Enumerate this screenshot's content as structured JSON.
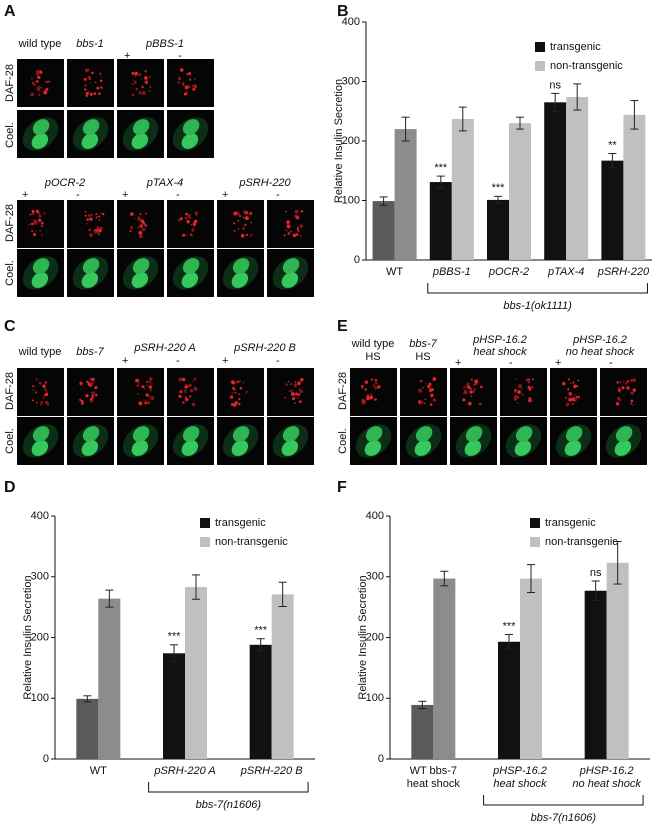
{
  "image_panels": {
    "A": {
      "panel_label": "A",
      "blocks": [
        {
          "headers": [
            "wild type",
            "bbs-1",
            "pBBS-1"
          ],
          "signs": [
            "+",
            "-"
          ],
          "rows": [
            "DAF-28",
            "Coel."
          ]
        },
        {
          "headers": [
            "pOCR-2",
            "pTAX-4",
            "pSRH-220"
          ],
          "signs": [
            "+",
            "-",
            "+",
            "-",
            "+",
            "-"
          ],
          "rows": [
            "DAF-28",
            "Coel."
          ]
        }
      ]
    },
    "C": {
      "panel_label": "C",
      "headers": [
        "wild type",
        "bbs-7",
        "pSRH-220 A",
        "pSRH-220 B"
      ],
      "signs": [
        "+",
        "-",
        "+",
        "-"
      ],
      "rows": [
        "DAF-28",
        "Coel."
      ]
    },
    "E": {
      "panel_label": "E",
      "headers": [
        "wild type",
        "bbs-7",
        "pHSP-16.2",
        "heat shock",
        "pHSP-16.2",
        "no heat shock"
      ],
      "sub_headers": [
        "HS",
        "HS"
      ],
      "signs": [
        "+",
        "-",
        "+",
        "-"
      ],
      "rows": [
        "DAF-28",
        "Coel."
      ]
    }
  },
  "chart_data": [
    {
      "type": "bar",
      "panel_label": "B",
      "ylabel": "Relative Insulin Secretion",
      "categories": [
        [
          "WT"
        ],
        [
          "pBBS-1"
        ],
        [
          "pOCR-2"
        ],
        [
          "pTAX-4"
        ],
        [
          "pSRH-220"
        ]
      ],
      "series": [
        {
          "name": "transgenic",
          "color": "#111111",
          "colors": [
            "#5a5a5a",
            "#111111",
            "#111111",
            "#111111",
            "#111111"
          ],
          "values": [
            99,
            131,
            101,
            265,
            167
          ],
          "errors": [
            7,
            10,
            6,
            15,
            12
          ]
        },
        {
          "name": "non-transgenic",
          "color": "#c0c0c0",
          "colors": [
            "#8c8c8c",
            "#c0c0c0",
            "#c0c0c0",
            "#c0c0c0",
            "#c0c0c0"
          ],
          "values": [
            220,
            237,
            230,
            274,
            244
          ],
          "errors": [
            20,
            20,
            10,
            22,
            24
          ]
        }
      ],
      "significance": [
        null,
        "***",
        "***",
        "ns",
        "**"
      ],
      "group_label": "bbs-1(ok1111)",
      "ylim": [
        0,
        400
      ],
      "yticks": [
        0,
        100,
        200,
        300,
        400
      ],
      "legend": "upper right"
    },
    {
      "type": "bar",
      "panel_label": "D",
      "ylabel": "Relative Insulin Secretion",
      "categories": [
        [
          "WT"
        ],
        [
          "pSRH-220 A"
        ],
        [
          "pSRH-220 B"
        ]
      ],
      "series": [
        {
          "name": "transgenic",
          "color": "#111111",
          "colors": [
            "#5a5a5a",
            "#111111",
            "#111111"
          ],
          "values": [
            99,
            174,
            188
          ],
          "errors": [
            5,
            14,
            10
          ]
        },
        {
          "name": "non-transgenic",
          "color": "#c0c0c0",
          "colors": [
            "#8c8c8c",
            "#c0c0c0",
            "#c0c0c0"
          ],
          "values": [
            264,
            283,
            271
          ],
          "errors": [
            14,
            20,
            20
          ]
        }
      ],
      "significance": [
        null,
        "***",
        "***"
      ],
      "group_label": "bbs-7(n1606)",
      "ylim": [
        0,
        400
      ],
      "yticks": [
        0,
        100,
        200,
        300,
        400
      ],
      "legend": "upper right"
    },
    {
      "type": "bar",
      "panel_label": "F",
      "ylabel": "Relative Insulin Secretion",
      "categories": [
        [
          "WT bbs-7",
          "heat shock"
        ],
        [
          "pHSP-16.2",
          "heat shock"
        ],
        [
          "pHSP-16.2",
          "no heat shock"
        ]
      ],
      "series": [
        {
          "name": "transgenic",
          "color": "#111111",
          "colors": [
            "#5a5a5a",
            "#111111",
            "#111111"
          ],
          "values": [
            89,
            193,
            277
          ],
          "errors": [
            6,
            12,
            16
          ]
        },
        {
          "name": "non-transgenic",
          "color": "#c0c0c0",
          "colors": [
            "#8c8c8c",
            "#c0c0c0",
            "#c0c0c0"
          ],
          "values": [
            297,
            297,
            323
          ],
          "errors": [
            12,
            23,
            35
          ]
        }
      ],
      "significance": [
        null,
        "***",
        "ns"
      ],
      "group_label": "bbs-7(n1606)",
      "ylim": [
        0,
        400
      ],
      "yticks": [
        0,
        100,
        200,
        300,
        400
      ],
      "legend": "upper right"
    }
  ]
}
